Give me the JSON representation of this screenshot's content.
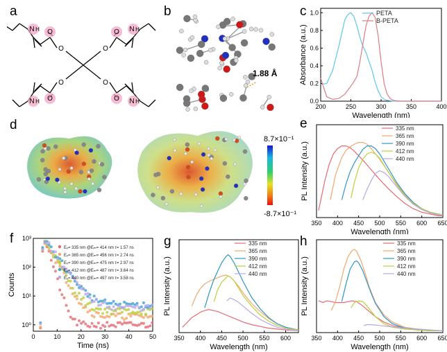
{
  "panel_labels": {
    "a": "a",
    "b": "b",
    "c": "c",
    "d": "d",
    "e": "e",
    "f": "f",
    "g": "g",
    "h": "h"
  },
  "structure": {
    "nh_label": "N",
    "h_label": "H",
    "o_label": "O"
  },
  "model": {
    "hbond_label": "1.88 Å"
  },
  "esp": {
    "scale_max": "8.7×10⁻¹",
    "scale_min": "-8.7×10⁻¹"
  },
  "colors": {
    "peta": "#5bc8e6",
    "b_peta": "#e07a84",
    "s335": "#e46a72",
    "s365": "#f2a66a",
    "s390": "#2b97c9",
    "s412": "#b9cf3a",
    "s440": "#b8a6e6"
  },
  "chart_data": [
    {
      "id": "c",
      "type": "line",
      "xlabel": "Wavelength (nm)",
      "ylabel": "Absorbance (a.u.)",
      "xlim": [
        200,
        400
      ],
      "ylim": [
        0,
        1.05
      ],
      "xticks": [
        200,
        250,
        300,
        350,
        400
      ],
      "yticks": [
        "0.0",
        "0.2",
        "0.4",
        "0.6",
        "0.8",
        "1.0"
      ],
      "legend_position": "top-right",
      "series": [
        {
          "name": "PETA",
          "color": "#5bc8e6",
          "x": [
            200,
            210,
            220,
            230,
            240,
            245,
            250,
            255,
            260,
            265,
            270,
            275,
            280,
            285,
            290,
            295,
            300,
            305,
            310,
            320,
            340,
            400
          ],
          "y": [
            0.19,
            0.2,
            0.35,
            0.62,
            0.92,
            0.98,
            1.0,
            0.96,
            0.85,
            0.72,
            0.62,
            0.55,
            0.45,
            0.35,
            0.22,
            0.12,
            0.05,
            0.02,
            0.01,
            0.0,
            0.0,
            0.0
          ]
        },
        {
          "name": "B-PETA",
          "color": "#e07a84",
          "x": [
            200,
            210,
            220,
            230,
            240,
            250,
            255,
            260,
            265,
            270,
            275,
            280,
            285,
            290,
            295,
            300,
            305,
            310,
            315,
            320,
            330,
            350,
            400
          ],
          "y": [
            0.26,
            0.05,
            0.02,
            0.03,
            0.08,
            0.17,
            0.22,
            0.28,
            0.45,
            0.65,
            0.85,
            0.96,
            1.0,
            0.95,
            0.75,
            0.45,
            0.2,
            0.08,
            0.03,
            0.01,
            0.0,
            0.0,
            0.0
          ]
        }
      ]
    },
    {
      "id": "e",
      "type": "line",
      "xlabel": "Wavelength (nm)",
      "ylabel": "PL Intensity (a.u.)",
      "xlim": [
        350,
        650
      ],
      "ylim": [
        0,
        1.05
      ],
      "xticks": [
        350,
        400,
        450,
        500,
        550,
        600,
        650
      ],
      "legend_position": "top-right",
      "series": [
        {
          "name": "335 nm",
          "color": "#e46a72",
          "x": [
            355,
            370,
            380,
            390,
            400,
            410,
            420,
            430,
            440,
            450,
            460,
            480,
            500,
            520,
            540,
            560,
            580,
            600,
            620,
            640,
            650
          ],
          "y": [
            0.08,
            0.42,
            0.6,
            0.72,
            0.78,
            0.81,
            0.81,
            0.79,
            0.75,
            0.7,
            0.65,
            0.54,
            0.43,
            0.33,
            0.24,
            0.16,
            0.1,
            0.06,
            0.04,
            0.02,
            0.02
          ]
        },
        {
          "name": "365 nm",
          "color": "#f2a66a",
          "x": [
            383,
            395,
            410,
            420,
            430,
            440,
            450,
            460,
            470,
            480,
            500,
            520,
            540,
            560,
            580,
            600,
            620,
            640,
            650
          ],
          "y": [
            0.2,
            0.48,
            0.68,
            0.76,
            0.8,
            0.83,
            0.85,
            0.85,
            0.83,
            0.78,
            0.66,
            0.52,
            0.38,
            0.26,
            0.17,
            0.1,
            0.06,
            0.04,
            0.03
          ]
        },
        {
          "name": "390 nm",
          "color": "#2b97c9",
          "x": [
            410,
            420,
            430,
            440,
            450,
            460,
            470,
            480,
            490,
            500,
            520,
            540,
            560,
            580,
            600,
            620,
            640,
            650
          ],
          "y": [
            0.2,
            0.38,
            0.52,
            0.62,
            0.7,
            0.77,
            0.81,
            0.81,
            0.78,
            0.72,
            0.56,
            0.4,
            0.27,
            0.17,
            0.1,
            0.06,
            0.04,
            0.03
          ]
        },
        {
          "name": "412 nm",
          "color": "#b9cf3a",
          "x": [
            432,
            440,
            450,
            460,
            470,
            480,
            490,
            500,
            520,
            540,
            560,
            580,
            600,
            620,
            640,
            650
          ],
          "y": [
            0.22,
            0.4,
            0.56,
            0.66,
            0.72,
            0.74,
            0.72,
            0.67,
            0.52,
            0.37,
            0.25,
            0.16,
            0.1,
            0.06,
            0.04,
            0.03
          ]
        },
        {
          "name": "440 nm",
          "color": "#b8a6e6",
          "x": [
            460,
            470,
            480,
            490,
            500,
            510,
            520,
            540,
            560,
            580,
            600,
            620,
            640,
            650
          ],
          "y": [
            0.2,
            0.32,
            0.42,
            0.5,
            0.53,
            0.51,
            0.47,
            0.35,
            0.24,
            0.15,
            0.09,
            0.05,
            0.03,
            0.03
          ]
        }
      ]
    },
    {
      "id": "f",
      "type": "scatter",
      "xlabel": "Time (ns)",
      "ylabel": "Counts",
      "xlim": [
        0,
        50
      ],
      "ylim_log": [
        0.6,
        1000
      ],
      "log_scale_y": true,
      "xticks": [
        0,
        10,
        20,
        30,
        40,
        50
      ],
      "yticks": [
        "10⁰",
        "10¹",
        "10²",
        "10³"
      ],
      "legend_position": "top-right",
      "series": [
        {
          "name": "Eₓ= 335 nm @Eₘ= 414 nm τ= 1.57 ns",
          "color": "#e46a72",
          "tau": 1.57,
          "floor": 1
        },
        {
          "name": "Eₓ= 365 nm @Eₘ= 456 nm τ= 2.74 ns",
          "color": "#f2a66a",
          "tau": 2.74,
          "floor": 2
        },
        {
          "name": "Eₓ= 390 nm @Eₘ= 475 nm τ= 2.97 ns",
          "color": "#b9cf3a",
          "tau": 2.97,
          "floor": 3
        },
        {
          "name": "Eₓ= 412 nm @Eₘ= 487 nm τ= 3.64 ns",
          "color": "#3aa3cf",
          "tau": 3.64,
          "floor": 5
        },
        {
          "name": "Eₓ= 440 nm @Eₘ= 497 nm τ= 3.58 ns",
          "color": "#b8a6e6",
          "tau": 3.58,
          "floor": 4
        }
      ]
    },
    {
      "id": "g",
      "type": "line",
      "xlabel": "Wavelength (nm)",
      "ylabel": "PL Intensity (a.u.)",
      "xlim": [
        350,
        630
      ],
      "ylim": [
        0,
        1.05
      ],
      "xticks": [
        350,
        400,
        450,
        500,
        550,
        600
      ],
      "legend_position": "top-right",
      "series": [
        {
          "name": "335 nm",
          "color": "#e46a72",
          "x": [
            358,
            370,
            380,
            390,
            400,
            410,
            420,
            430,
            440,
            460,
            480,
            500,
            520,
            540,
            560,
            580,
            600,
            630
          ],
          "y": [
            0.06,
            0.12,
            0.17,
            0.2,
            0.23,
            0.25,
            0.26,
            0.25,
            0.24,
            0.2,
            0.16,
            0.12,
            0.09,
            0.07,
            0.05,
            0.04,
            0.03,
            0.02
          ]
        },
        {
          "name": "365 nm",
          "color": "#f2a66a",
          "x": [
            380,
            390,
            400,
            410,
            420,
            430,
            440,
            450,
            460,
            470,
            480,
            490,
            500,
            520,
            540,
            560,
            580,
            600,
            630
          ],
          "y": [
            0.3,
            0.42,
            0.5,
            0.55,
            0.58,
            0.6,
            0.62,
            0.64,
            0.65,
            0.63,
            0.58,
            0.52,
            0.45,
            0.33,
            0.24,
            0.16,
            0.1,
            0.06,
            0.03
          ]
        },
        {
          "name": "390 nm",
          "color": "#2b97c9",
          "x": [
            410,
            420,
            430,
            440,
            450,
            460,
            465,
            470,
            480,
            490,
            500,
            520,
            540,
            560,
            580,
            600,
            630
          ],
          "y": [
            0.28,
            0.44,
            0.58,
            0.69,
            0.79,
            0.86,
            0.88,
            0.86,
            0.78,
            0.68,
            0.58,
            0.4,
            0.27,
            0.17,
            0.1,
            0.06,
            0.03
          ]
        },
        {
          "name": "412 nm",
          "color": "#b9cf3a",
          "x": [
            432,
            440,
            450,
            460,
            465,
            470,
            480,
            490,
            500,
            520,
            540,
            560,
            580,
            600,
            630
          ],
          "y": [
            0.35,
            0.48,
            0.57,
            0.62,
            0.64,
            0.63,
            0.58,
            0.5,
            0.42,
            0.3,
            0.2,
            0.13,
            0.08,
            0.05,
            0.03
          ]
        },
        {
          "name": "440 nm",
          "color": "#b8a6e6",
          "x": [
            462,
            470,
            480,
            490,
            500,
            520,
            540,
            560,
            580,
            600,
            630
          ],
          "y": [
            0.36,
            0.39,
            0.37,
            0.34,
            0.3,
            0.22,
            0.15,
            0.1,
            0.06,
            0.04,
            0.02
          ]
        }
      ]
    },
    {
      "id": "h",
      "type": "line",
      "xlabel": "Wavelength (nm)",
      "ylabel": "PL Intensity (a.u.)",
      "xlim": [
        350,
        650
      ],
      "ylim": [
        0,
        1.05
      ],
      "xticks": [
        350,
        400,
        450,
        500,
        550,
        600,
        650
      ],
      "legend_position": "top-right",
      "series": [
        {
          "name": "335 nm",
          "color": "#e46a72",
          "x": [
            355,
            365,
            375,
            385,
            395,
            405,
            415,
            425,
            435,
            445,
            455,
            470,
            490,
            510,
            530,
            560,
            590,
            620,
            650
          ],
          "y": [
            0.36,
            0.34,
            0.36,
            0.35,
            0.34,
            0.34,
            0.34,
            0.35,
            0.36,
            0.35,
            0.32,
            0.26,
            0.18,
            0.12,
            0.08,
            0.05,
            0.03,
            0.02,
            0.02
          ]
        },
        {
          "name": "365 nm",
          "color": "#f2a66a",
          "x": [
            385,
            395,
            405,
            415,
            425,
            435,
            440,
            445,
            455,
            465,
            475,
            490,
            510,
            530,
            560,
            590,
            620,
            650
          ],
          "y": [
            0.25,
            0.35,
            0.52,
            0.72,
            0.86,
            0.93,
            0.94,
            0.92,
            0.82,
            0.68,
            0.52,
            0.34,
            0.2,
            0.12,
            0.06,
            0.04,
            0.03,
            0.02
          ]
        },
        {
          "name": "390 nm",
          "color": "#2b97c9",
          "x": [
            410,
            420,
            430,
            440,
            445,
            450,
            460,
            470,
            480,
            490,
            510,
            530,
            560,
            590,
            620,
            650
          ],
          "y": [
            0.35,
            0.55,
            0.72,
            0.8,
            0.81,
            0.79,
            0.7,
            0.57,
            0.44,
            0.33,
            0.18,
            0.1,
            0.05,
            0.03,
            0.02,
            0.02
          ]
        },
        {
          "name": "412 nm",
          "color": "#b9cf3a",
          "x": [
            432,
            440,
            450,
            460,
            470,
            480,
            490,
            510,
            530,
            560,
            590,
            620,
            650
          ],
          "y": [
            0.28,
            0.34,
            0.36,
            0.35,
            0.3,
            0.24,
            0.18,
            0.1,
            0.06,
            0.04,
            0.03,
            0.02,
            0.02
          ]
        },
        {
          "name": "440 nm",
          "color": "#b8a6e6",
          "x": [
            462,
            470,
            480,
            500,
            520,
            540,
            560,
            590,
            620,
            650
          ],
          "y": [
            0.08,
            0.09,
            0.09,
            0.08,
            0.07,
            0.06,
            0.05,
            0.04,
            0.03,
            0.02
          ]
        }
      ]
    }
  ]
}
